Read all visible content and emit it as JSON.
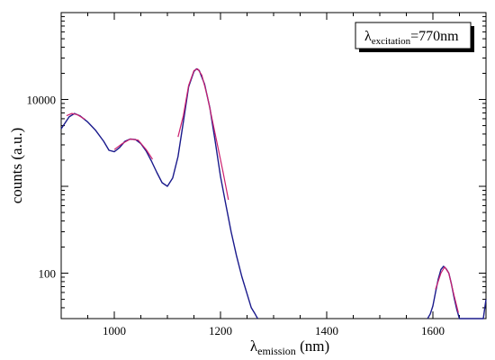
{
  "chart_data": {
    "type": "line",
    "xlabel": {
      "symbol": "λ",
      "subscript": "emission",
      "unit": " (nm)"
    },
    "ylabel": "counts (a.u.)",
    "xlim": [
      900,
      1700
    ],
    "ylim": [
      30,
      100000
    ],
    "yscale": "log",
    "x_ticks": [
      1000,
      1200,
      1400,
      1600
    ],
    "y_ticks": [
      100,
      10000
    ],
    "x_tick_labels": [
      "1000",
      "1200",
      "1400",
      "1600"
    ],
    "y_tick_labels": [
      "100",
      "10000"
    ],
    "grid": false,
    "legend_position": "top-right",
    "annotation": {
      "symbol": "λ",
      "subscript": "excitation",
      "value": "=770nm"
    },
    "series": [
      {
        "role": "measured",
        "color": "#1a1a8c",
        "points": [
          [
            900,
            4600
          ],
          [
            915,
            6300
          ],
          [
            925,
            6900
          ],
          [
            935,
            6500
          ],
          [
            950,
            5500
          ],
          [
            965,
            4400
          ],
          [
            980,
            3300
          ],
          [
            990,
            2600
          ],
          [
            1000,
            2500
          ],
          [
            1010,
            2800
          ],
          [
            1020,
            3300
          ],
          [
            1030,
            3500
          ],
          [
            1040,
            3450
          ],
          [
            1050,
            3100
          ],
          [
            1060,
            2550
          ],
          [
            1070,
            1950
          ],
          [
            1080,
            1450
          ],
          [
            1090,
            1100
          ],
          [
            1100,
            1000
          ],
          [
            1110,
            1250
          ],
          [
            1120,
            2200
          ],
          [
            1130,
            5500
          ],
          [
            1140,
            14000
          ],
          [
            1150,
            21000
          ],
          [
            1155,
            22500
          ],
          [
            1160,
            21500
          ],
          [
            1170,
            15000
          ],
          [
            1180,
            8000
          ],
          [
            1190,
            3300
          ],
          [
            1200,
            1300
          ],
          [
            1210,
            620
          ],
          [
            1220,
            300
          ],
          [
            1230,
            160
          ],
          [
            1240,
            92
          ],
          [
            1250,
            58
          ],
          [
            1258,
            40
          ],
          [
            1265,
            34
          ],
          [
            1270,
            28
          ]
        ],
        "points_right": [
          [
            1590,
            30
          ],
          [
            1595,
            34
          ],
          [
            1600,
            42
          ],
          [
            1605,
            60
          ],
          [
            1610,
            85
          ],
          [
            1615,
            110
          ],
          [
            1620,
            120
          ],
          [
            1625,
            112
          ],
          [
            1630,
            100
          ],
          [
            1635,
            75
          ],
          [
            1640,
            52
          ],
          [
            1645,
            38
          ],
          [
            1650,
            30
          ],
          [
            1695,
            30
          ],
          [
            1700,
            50
          ]
        ]
      },
      {
        "role": "fit",
        "color": "#cc1f6e",
        "segments": [
          [
            [
              910,
              6500
            ],
            [
              920,
              6900
            ],
            [
              930,
              6700
            ],
            [
              945,
              5900
            ]
          ],
          [
            [
              1000,
              2650
            ],
            [
              1015,
              3100
            ],
            [
              1030,
              3500
            ],
            [
              1045,
              3400
            ],
            [
              1060,
              2650
            ],
            [
              1072,
              2050
            ]
          ],
          [
            [
              1120,
              3700
            ],
            [
              1130,
              6500
            ],
            [
              1140,
              14500
            ],
            [
              1150,
              21500
            ],
            [
              1157,
              22500
            ],
            [
              1165,
              19000
            ],
            [
              1175,
              11000
            ],
            [
              1190,
              4000
            ],
            [
              1205,
              1450
            ],
            [
              1215,
              700
            ]
          ],
          [
            [
              1605,
              65
            ],
            [
              1615,
              100
            ],
            [
              1622,
              118
            ],
            [
              1630,
              100
            ],
            [
              1640,
              55
            ],
            [
              1648,
              35
            ]
          ]
        ]
      }
    ]
  }
}
